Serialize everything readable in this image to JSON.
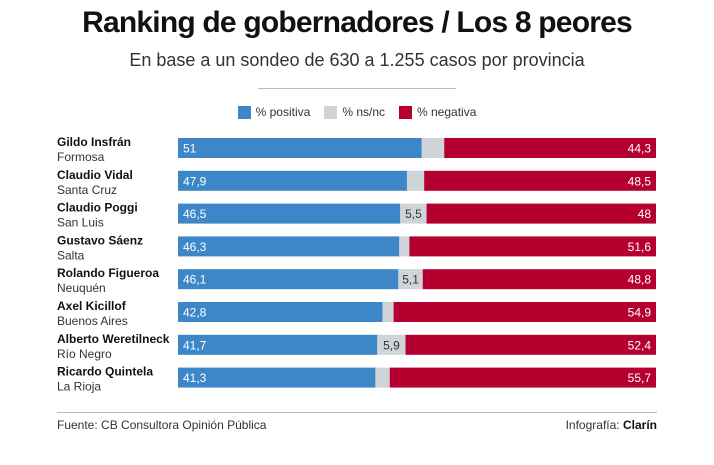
{
  "header": {
    "title": "Ranking de gobernadores / Los 8 peores",
    "subtitle": "En base a un sondeo de 630 a 1.255 casos por provincia"
  },
  "legend": [
    {
      "label": "% positiva",
      "color": "#3d87c8"
    },
    {
      "label": "% ns/nc",
      "color": "#cfd4d8"
    },
    {
      "label": "% negativa",
      "color": "#b5002f"
    }
  ],
  "chart_data": {
    "type": "bar",
    "orientation": "horizontal",
    "stacked": true,
    "title": "Ranking de gobernadores / Los 8 peores",
    "subtitle": "En base a un sondeo de 630 a 1.255 casos por provincia",
    "categories": [
      {
        "name": "Gildo Insfrán",
        "province": "Formosa"
      },
      {
        "name": "Claudio Vidal",
        "province": "Santa Cruz"
      },
      {
        "name": "Claudio Poggi",
        "province": "San Luis"
      },
      {
        "name": "Gustavo Sáenz",
        "province": "Salta"
      },
      {
        "name": "Rolando Figueroa",
        "province": "Neuquén"
      },
      {
        "name": "Axel Kicillof",
        "province": "Buenos Aires"
      },
      {
        "name": "Alberto Weretilneck",
        "province": "Río Negro"
      },
      {
        "name": "Ricardo Quintela",
        "province": "La Rioja"
      }
    ],
    "series": [
      {
        "name": "% positiva",
        "color": "#3d87c8",
        "values": [
          51,
          47.9,
          46.5,
          46.3,
          46.1,
          42.8,
          41.7,
          41.3
        ],
        "labels": [
          "51",
          "47,9",
          "46,5",
          "46,3",
          "46,1",
          "42,8",
          "41,7",
          "41,3"
        ]
      },
      {
        "name": "% ns/nc",
        "color": "#cfd4d8",
        "values": [
          4.7,
          3.6,
          5.5,
          2.1,
          5.1,
          2.3,
          5.9,
          3.0
        ],
        "labels": [
          "",
          "",
          "5,5",
          "",
          "5,1",
          "",
          "5,9",
          ""
        ]
      },
      {
        "name": "% negativa",
        "color": "#b5002f",
        "values": [
          44.3,
          48.5,
          48,
          51.6,
          48.8,
          54.9,
          52.4,
          55.7
        ],
        "labels": [
          "44,3",
          "48,5",
          "48",
          "51,6",
          "48,8",
          "54,9",
          "52,4",
          "55,7"
        ]
      }
    ],
    "xlim": [
      0,
      100
    ],
    "legend_position": "top-center",
    "grid": false
  },
  "footer": {
    "source": "Fuente: CB Consultora Opinión Pública",
    "credit_prefix": "Infografía:",
    "credit_brand": "Clarín"
  }
}
